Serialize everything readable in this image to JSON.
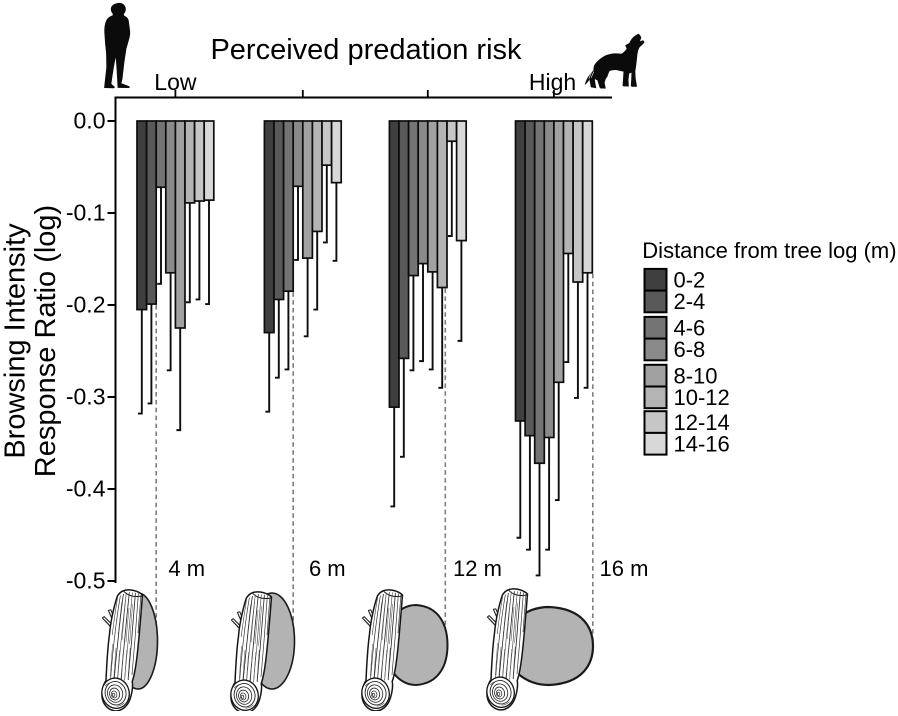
{
  "figure": {
    "top_axis": {
      "title": "Perceived predation risk",
      "low_label": "Low",
      "high_label": "High",
      "left_icon": "human-silhouette-icon",
      "right_icon": "wolf-silhouette-icon"
    },
    "y_axis": {
      "label_line1": "Browsing Intensity",
      "label_line2": "Response Ratio (log)",
      "tick_labels": [
        "0.0",
        "-0.1",
        "-0.2",
        "-0.3",
        "-0.4",
        "-0.5"
      ],
      "tick_values": [
        0.0,
        -0.1,
        -0.2,
        -0.3,
        -0.4,
        -0.5
      ]
    },
    "legend": {
      "title": "Distance from tree log (m)",
      "entries": [
        {
          "label": "0-2",
          "color": "#3f3f3f"
        },
        {
          "label": "2-4",
          "color": "#595959"
        },
        {
          "label": "4-6",
          "color": "#747474"
        },
        {
          "label": "6-8",
          "color": "#8a8a8a"
        },
        {
          "label": "8-10",
          "color": "#a1a1a1"
        },
        {
          "label": "10-12",
          "color": "#b4b4b4"
        },
        {
          "label": "12-14",
          "color": "#c6c6c6"
        },
        {
          "label": "14-16",
          "color": "#d8d8d8"
        }
      ]
    },
    "group_labels": [
      "4 m",
      "6 m",
      "12 m",
      "16 m"
    ]
  },
  "chart_data": {
    "type": "bar",
    "title": "Perceived predation risk",
    "xlabel": "Perceived predation risk (Low to High)",
    "ylabel": "Browsing Intensity Response Ratio (log)",
    "ylim": [
      -0.5,
      0.0
    ],
    "grid": false,
    "legend_position": "right",
    "legend_title": "Distance from tree log (m)",
    "categories": [
      "4 m",
      "6 m",
      "12 m",
      "16 m"
    ],
    "series": [
      {
        "name": "0-2",
        "color": "#3f3f3f",
        "values": [
          -0.205,
          -0.23,
          -0.311,
          -0.326
        ],
        "ci_low": [
          -0.318,
          -0.316,
          -0.419,
          -0.453
        ]
      },
      {
        "name": "2-4",
        "color": "#595959",
        "values": [
          -0.199,
          -0.194,
          -0.258,
          -0.342
        ],
        "ci_low": [
          -0.307,
          -0.279,
          -0.365,
          -0.466
        ]
      },
      {
        "name": "4-6",
        "color": "#747474",
        "values": [
          -0.072,
          -0.185,
          -0.168,
          -0.372
        ],
        "ci_low": [
          -0.177,
          -0.27,
          -0.271,
          -0.494
        ]
      },
      {
        "name": "6-8",
        "color": "#8a8a8a",
        "values": [
          -0.165,
          -0.071,
          -0.155,
          -0.344
        ],
        "ci_low": [
          -0.271,
          -0.151,
          -0.261,
          -0.466
        ]
      },
      {
        "name": "8-10",
        "color": "#a1a1a1",
        "values": [
          -0.225,
          -0.149,
          -0.164,
          -0.284
        ],
        "ci_low": [
          -0.336,
          -0.234,
          -0.27,
          -0.412
        ]
      },
      {
        "name": "10-12",
        "color": "#b4b4b4",
        "values": [
          -0.089,
          -0.12,
          -0.181,
          -0.144
        ],
        "ci_low": [
          -0.197,
          -0.205,
          -0.29,
          -0.262
        ]
      },
      {
        "name": "12-14",
        "color": "#c6c6c6",
        "values": [
          -0.087,
          -0.048,
          -0.022,
          -0.175
        ],
        "ci_low": [
          -0.194,
          -0.132,
          -0.125,
          -0.301
        ]
      },
      {
        "name": "14-16",
        "color": "#d8d8d8",
        "values": [
          -0.086,
          -0.067,
          -0.13,
          -0.165
        ],
        "ci_low": [
          -0.199,
          -0.152,
          -0.239,
          -0.29
        ]
      }
    ]
  }
}
